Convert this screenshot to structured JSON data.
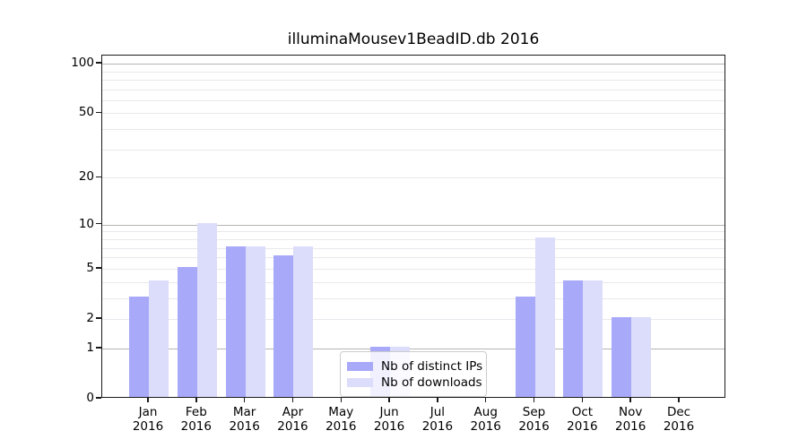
{
  "title": "illuminaMousev1BeadID.db 2016",
  "chart_data": {
    "type": "bar",
    "title": "illuminaMousev1BeadID.db 2016",
    "categories": [
      "Jan 2016",
      "Feb 2016",
      "Mar 2016",
      "Apr 2016",
      "May 2016",
      "Jun 2016",
      "Jul 2016",
      "Aug 2016",
      "Sep 2016",
      "Oct 2016",
      "Nov 2016",
      "Dec 2016"
    ],
    "series": [
      {
        "name": "Nb of distinct IPs",
        "color": "#a9a9fa",
        "values": [
          3,
          5,
          7,
          6,
          0,
          1,
          0,
          0,
          3,
          4,
          2,
          0
        ]
      },
      {
        "name": "Nb of downloads",
        "color": "#dcdcfb",
        "values": [
          4,
          10,
          7,
          7,
          0,
          1,
          0,
          0,
          8,
          4,
          2,
          0
        ]
      }
    ],
    "xlabel": "",
    "ylabel": "",
    "yscale": "log1p",
    "ylim": [
      0,
      112
    ],
    "yticks": [
      0,
      1,
      2,
      5,
      10,
      20,
      50,
      100
    ],
    "major_gridlines": [
      1,
      10,
      100
    ],
    "minor_gridlines": [
      2,
      3,
      4,
      5,
      6,
      7,
      8,
      9,
      20,
      30,
      40,
      50,
      60,
      70,
      80,
      90
    ],
    "grid": true,
    "legend_position": "inside-bottom-center",
    "colors": {
      "major_grid": "#b4b4b4",
      "minor_grid": "#e9e9ee",
      "spine": "#1a1a1a",
      "background": "#ffffff",
      "text": "#000000"
    }
  }
}
